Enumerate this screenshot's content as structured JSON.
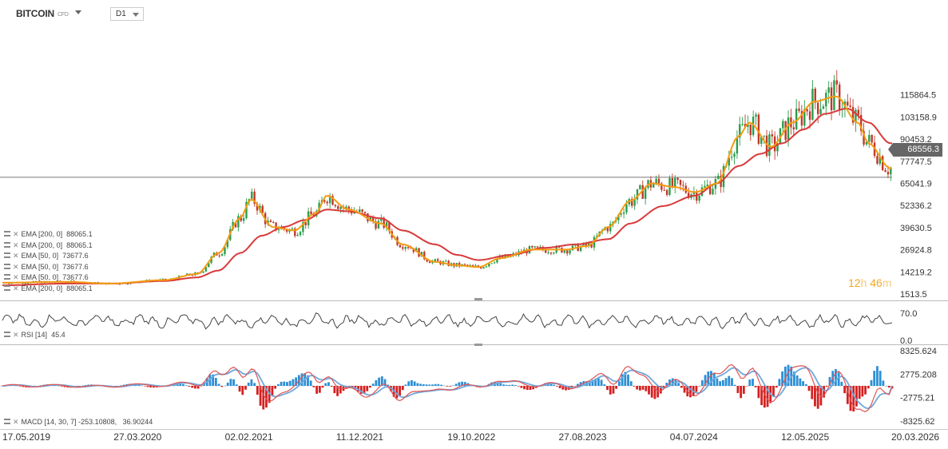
{
  "header": {
    "symbol": "BITCOIN",
    "symbol_sub": "CFD",
    "timeframe": "D1"
  },
  "legend": {
    "price_lines": [
      {
        "label": "EMA [200, 0]",
        "value": "88065.1"
      },
      {
        "label": "EMA [200, 0]",
        "value": "88065.1"
      },
      {
        "label": "EMA [50, 0]",
        "value": "73677.6"
      },
      {
        "label": "EMA [50, 0]",
        "value": "73677.6"
      },
      {
        "label": "EMA [50, 0]",
        "value": "73677.6"
      },
      {
        "label": "EMA [200, 0]",
        "value": "88065.1"
      }
    ],
    "rsi": {
      "label": "RSI [14]",
      "value": "45.4"
    },
    "macd": {
      "label": "MACD [14, 30, 7]",
      "value1": "-253.10808,",
      "value2": "36.90244"
    }
  },
  "current_price": "68556.3",
  "countdown": {
    "h": "12",
    "h_unit": "h",
    "m": "46",
    "m_unit": "m"
  },
  "colors": {
    "ema50": "#f39c12",
    "ema200": "#d93a3a",
    "candle_up": "#2a9d4a",
    "candle_down": "#c0392b",
    "rsi_line": "#444444",
    "macd_line": "#e05555",
    "signal_line": "#6fa8dc",
    "hist_pos": "#2b8fd6",
    "hist_neg": "#d62020"
  },
  "chart_data": [
    {
      "type": "candlestick",
      "title": "BITCOIN",
      "price_axis_ticks": [
        "115864.5",
        "103158.9",
        "90453.2",
        "77747.5",
        "65041.9",
        "52336.2",
        "39630.5",
        "26924.8",
        "14219.2",
        "1513.5"
      ],
      "x_tick_labels": [
        "17.05.2019",
        "27.03.2020",
        "02.02.2021",
        "11.12.2021",
        "19.10.2022",
        "27.08.2023",
        "04.07.2024",
        "12.05.2025",
        "20.03.2026"
      ],
      "x_range": [
        "2019-05-17",
        "2026-03-20"
      ],
      "ylim": [
        1513.5,
        123000
      ],
      "series": [
        {
          "name": "EMA [50, 0]",
          "x": [
            "2019-05",
            "2019-11",
            "2020-03",
            "2020-08",
            "2020-11",
            "2021-01",
            "2021-03",
            "2021-04",
            "2021-06",
            "2021-08",
            "2021-10",
            "2021-11",
            "2022-01",
            "2022-04",
            "2022-06",
            "2022-09",
            "2022-11",
            "2023-01",
            "2023-03",
            "2023-06",
            "2023-09",
            "2023-11",
            "2024-01",
            "2024-03",
            "2024-05",
            "2024-07",
            "2024-09",
            "2024-11",
            "2025-01",
            "2025-02",
            "2025-04",
            "2025-06",
            "2025-08",
            "2025-10",
            "2025-12",
            "2026-01",
            "2026-03"
          ],
          "y": [
            8000,
            8500,
            7500,
            9500,
            13000,
            25000,
            45000,
            56000,
            40000,
            38000,
            48000,
            58000,
            50000,
            42000,
            30000,
            20000,
            18000,
            17000,
            22000,
            27000,
            27000,
            29000,
            40000,
            55000,
            65000,
            63000,
            60000,
            65000,
            92000,
            100000,
            86000,
            100000,
            112000,
            115000,
            100000,
            88000,
            73677
          ]
        },
        {
          "name": "EMA [200, 0]",
          "x": [
            "2019-05",
            "2019-11",
            "2020-03",
            "2020-08",
            "2020-11",
            "2021-01",
            "2021-03",
            "2021-05",
            "2021-07",
            "2021-09",
            "2021-11",
            "2022-01",
            "2022-04",
            "2022-06",
            "2022-09",
            "2022-11",
            "2023-01",
            "2023-04",
            "2023-07",
            "2023-10",
            "2024-01",
            "2024-03",
            "2024-06",
            "2024-09",
            "2024-11",
            "2025-01",
            "2025-03",
            "2025-05",
            "2025-07",
            "2025-09",
            "2025-11",
            "2026-01",
            "2026-03"
          ],
          "y": [
            6500,
            7500,
            7500,
            9000,
            11000,
            15000,
            25000,
            35000,
            40000,
            44000,
            50000,
            49000,
            45000,
            38000,
            30000,
            24000,
            21000,
            24000,
            28000,
            30000,
            33000,
            42000,
            52000,
            58000,
            65000,
            75000,
            82000,
            88000,
            96000,
            105000,
            108000,
            100000,
            88065
          ]
        }
      ]
    },
    {
      "type": "line",
      "title": "RSI [14]",
      "axis_ticks": [
        "70.0",
        "0.0"
      ],
      "last_value": 45.4
    },
    {
      "type": "bar",
      "title": "MACD [14, 30, 7]",
      "axis_ticks": [
        "8325.624",
        "2775.208",
        "-2775.21",
        "-8325.62"
      ],
      "ylim": [
        -8325.62,
        8325.624
      ],
      "macd_value": -253.10808,
      "signal_value": 36.90244
    }
  ]
}
